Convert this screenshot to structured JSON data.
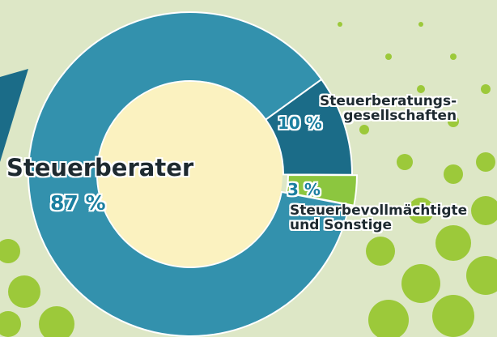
{
  "chart_data": {
    "type": "donut",
    "categories": [
      "Steuerberater",
      "Steuerberatungs-\ngesellschaften",
      "Steuerbevollmächtigte\nund Sonstige"
    ],
    "values": [
      87,
      10,
      3
    ],
    "value_labels": [
      "87 %",
      "10 %",
      "3 %"
    ],
    "colors": [
      "#3391ad",
      "#1b6c88",
      "#8cc63f"
    ]
  }
}
